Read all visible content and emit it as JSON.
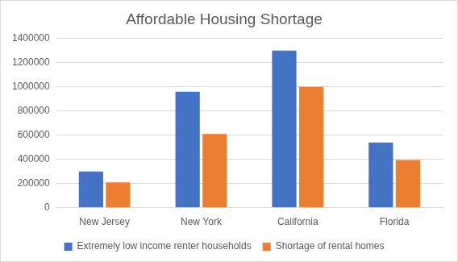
{
  "chart_data": {
    "type": "bar",
    "title": "Affordable Housing Shortage",
    "categories": [
      "New Jersey",
      "New York",
      "California",
      "Florida"
    ],
    "series": [
      {
        "name": "Extremely low income renter households",
        "color": "#4472c4",
        "values": [
          300000,
          960000,
          1300000,
          540000
        ]
      },
      {
        "name": "Shortage of rental homes",
        "color": "#ed7d31",
        "values": [
          210000,
          610000,
          1000000,
          395000
        ]
      }
    ],
    "ylim": [
      0,
      1400000
    ],
    "yticks": [
      0,
      200000,
      400000,
      600000,
      800000,
      1000000,
      1200000,
      1400000
    ],
    "grid": true,
    "legend": "bottom"
  }
}
